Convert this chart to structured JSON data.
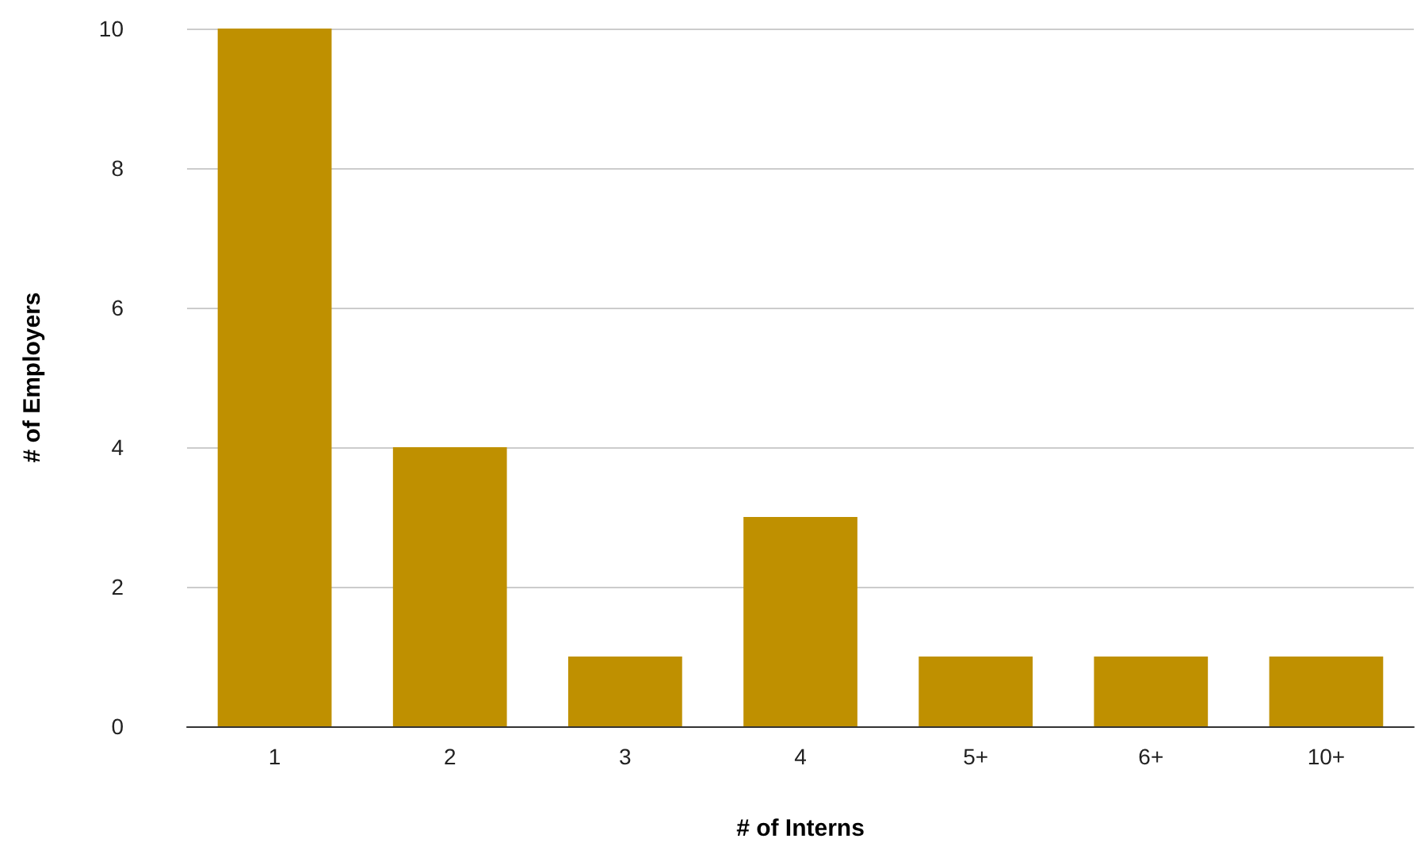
{
  "chart_data": {
    "type": "bar",
    "xlabel": "# of Interns",
    "ylabel": "# of Employers",
    "categories": [
      "1",
      "2",
      "3",
      "4",
      "5+",
      "6+",
      "10+"
    ],
    "series": [
      {
        "color": "#bf9000",
        "values": [
          10,
          4,
          1,
          3,
          1,
          1,
          1
        ]
      }
    ],
    "ylim": [
      0,
      10
    ],
    "yticks": [
      0,
      2,
      4,
      6,
      8,
      10
    ],
    "grid": "y"
  }
}
